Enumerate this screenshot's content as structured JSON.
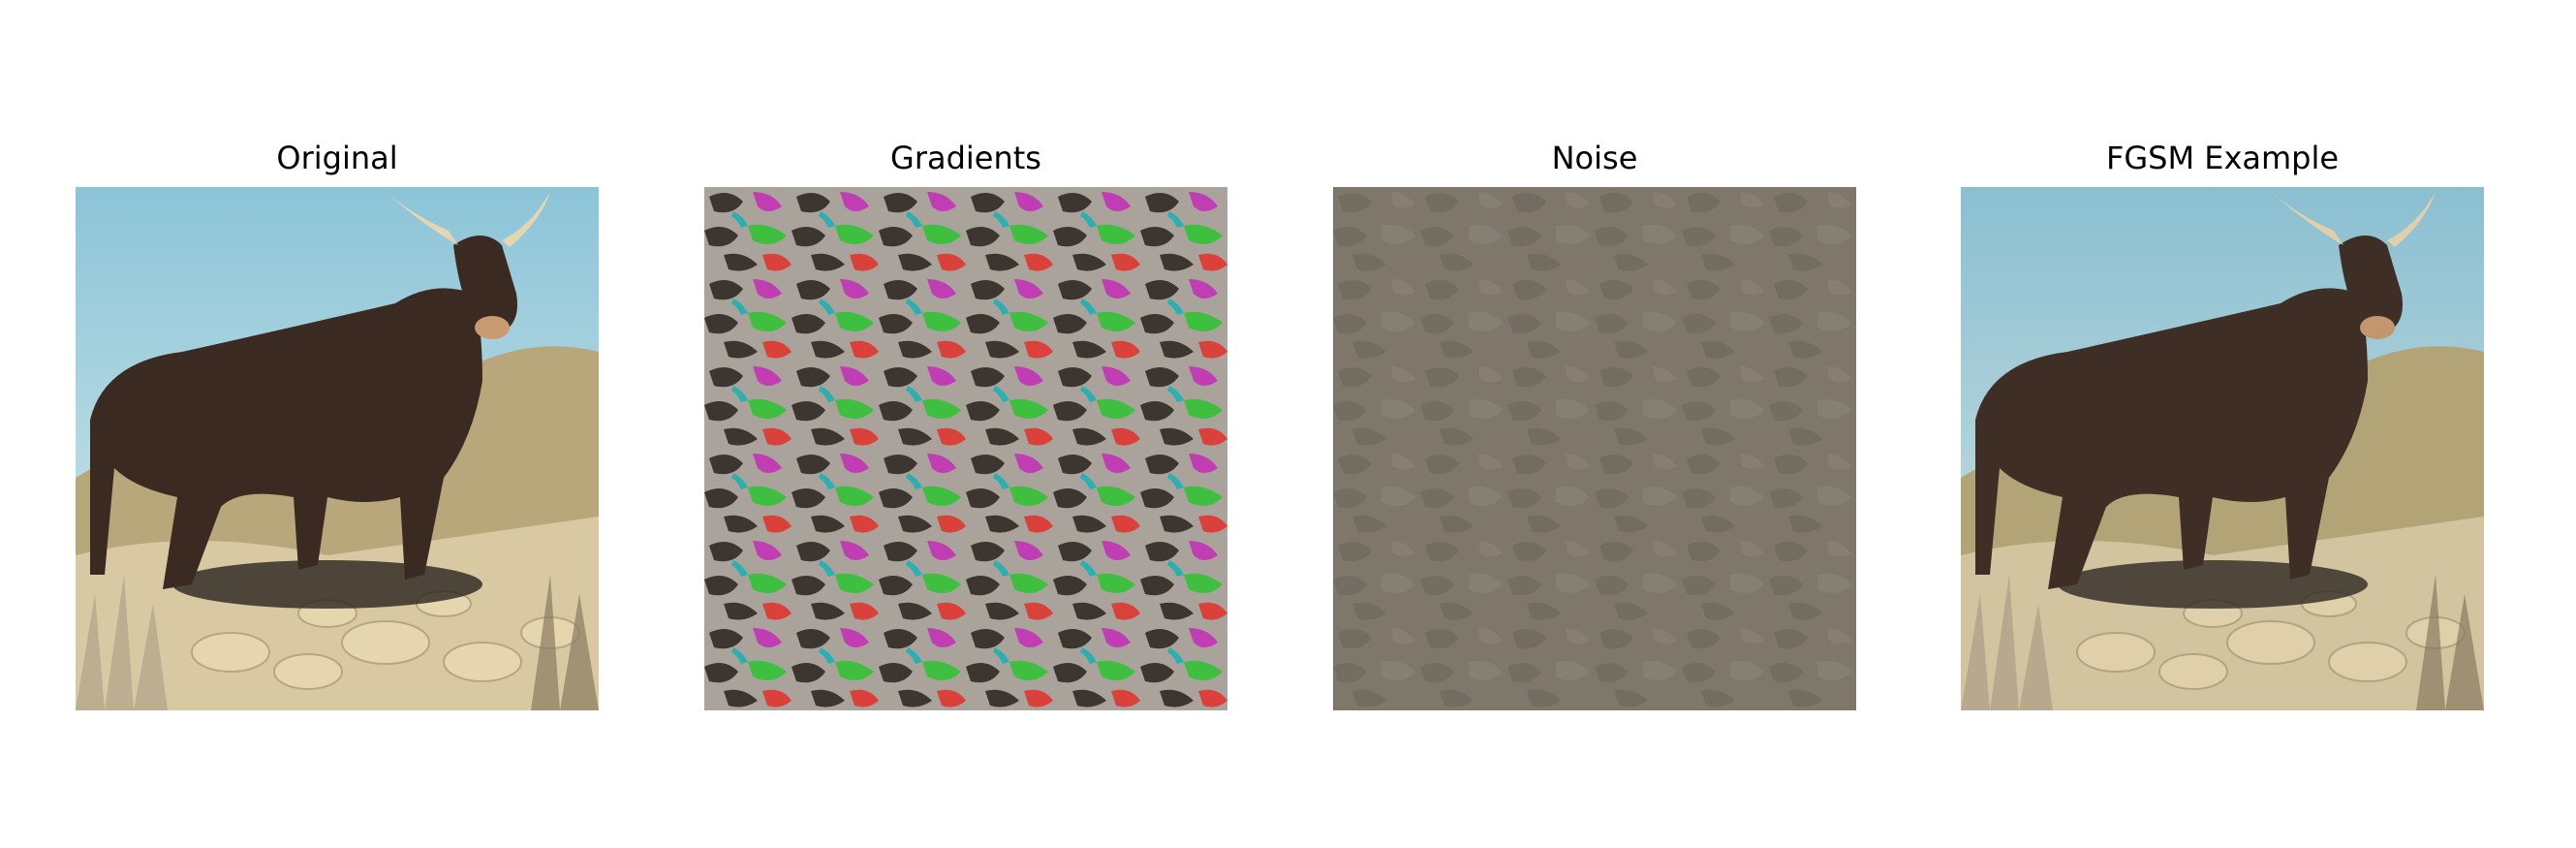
{
  "figure": {
    "panels": [
      {
        "title": "Original",
        "image": "bull-in-desert"
      },
      {
        "title": "Gradients",
        "image": "gradient-sign-pattern"
      },
      {
        "title": "Noise",
        "image": "scaled-noise-pattern"
      },
      {
        "title": "FGSM Example",
        "image": "adversarial-bull-in-desert"
      }
    ]
  },
  "colors": {
    "sky": "#a9d4e0",
    "bull": "#3b2a22",
    "ground": "#d8c9a3",
    "noise_base": "#7e776a",
    "gradient_gray": "#a9a39b",
    "gradient_dark": "#3d3530"
  }
}
